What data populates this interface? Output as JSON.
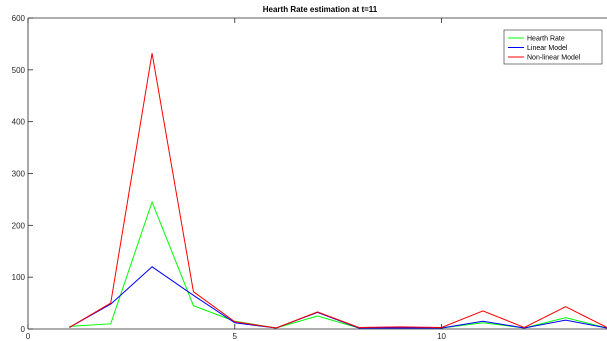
{
  "chart_data": {
    "type": "line",
    "title": "Hearth Rate estimation at t=11",
    "xlabel": "",
    "ylabel": "",
    "xlim": [
      0,
      14
    ],
    "ylim": [
      0,
      600
    ],
    "xticks": [
      0,
      5,
      10
    ],
    "yticks": [
      0,
      100,
      200,
      300,
      400,
      500,
      600
    ],
    "grid": false,
    "legend_position": "top-right",
    "x": [
      1,
      2,
      3,
      4,
      5,
      6,
      7,
      8,
      9,
      10,
      11,
      12,
      13,
      14,
      15
    ],
    "series": [
      {
        "name": "Hearth Rate",
        "color": "#00ff00",
        "values": [
          5,
          10,
          245,
          45,
          15,
          2,
          25,
          2,
          2,
          2,
          12,
          2,
          22,
          2,
          4
        ]
      },
      {
        "name": "Linear Model",
        "color": "#0000ff",
        "values": [
          3,
          48,
          120,
          65,
          12,
          2,
          32,
          2,
          2,
          2,
          15,
          2,
          17,
          2,
          4
        ]
      },
      {
        "name": "Non-linear Model",
        "color": "#ff0000",
        "values": [
          3,
          50,
          532,
          72,
          14,
          2,
          33,
          3,
          4,
          3,
          35,
          3,
          43,
          3,
          4
        ]
      }
    ]
  }
}
